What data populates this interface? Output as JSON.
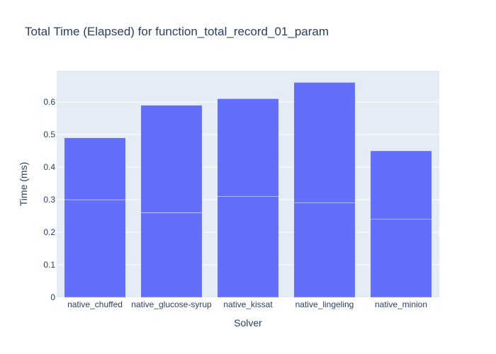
{
  "chart_data": {
    "type": "bar",
    "title": "Total Time (Elapsed) for function_total_record_01_param",
    "xlabel": "Solver",
    "ylabel": "Time (ms)",
    "categories": [
      "native_chuffed",
      "native_glucose-syrup",
      "native_kissat",
      "native_lingeling",
      "native_minion"
    ],
    "stacked": true,
    "series": [
      {
        "values": [
          0.3,
          0.26,
          0.31,
          0.29,
          0.24
        ]
      },
      {
        "values": [
          0.19,
          0.33,
          0.3,
          0.37,
          0.21
        ]
      }
    ],
    "ylim": [
      0,
      0.6957
    ],
    "yticks": [
      0,
      0.1,
      0.2,
      0.3,
      0.4,
      0.5,
      0.6
    ],
    "ytick_labels": [
      "0",
      "0.1",
      "0.2",
      "0.3",
      "0.4",
      "0.5",
      "0.6"
    ],
    "grid": true,
    "colors": {
      "bar": "#636efa",
      "plot_bg": "#e5ecf6",
      "grid": "#ffffff",
      "text": "#2a3f5f"
    }
  }
}
